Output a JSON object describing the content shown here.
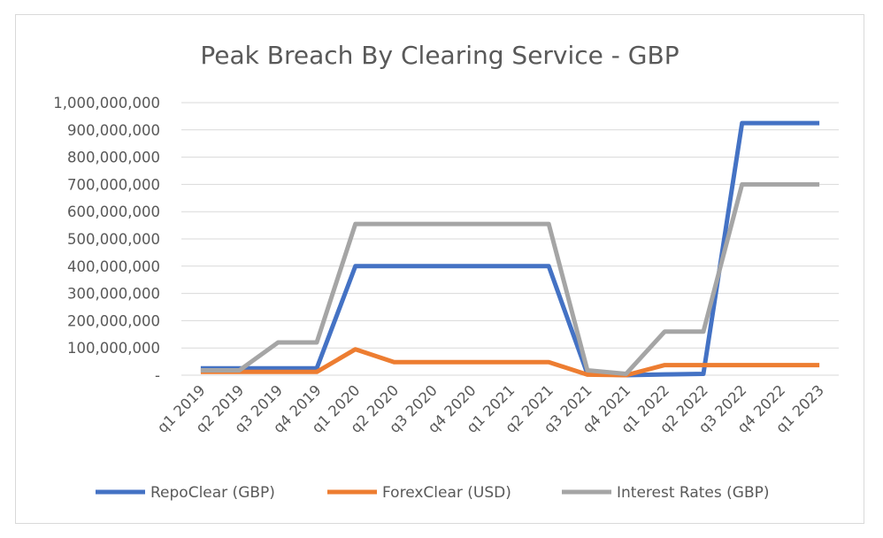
{
  "chart_data": {
    "type": "line",
    "title": "Peak Breach By Clearing Service - GBP",
    "xlabel": "",
    "ylabel": "",
    "categories": [
      "q1 2019",
      "q2 2019",
      "q3 2019",
      "q4 2019",
      "q1 2020",
      "q2 2020",
      "q3 2020",
      "q4 2020",
      "q1 2021",
      "q2 2021",
      "q3 2021",
      "q4 2021",
      "q1 2022",
      "q2 2022",
      "q3 2022",
      "q4 2022",
      "q1 2023"
    ],
    "ylim": [
      0,
      1000000000
    ],
    "yticks": [
      0,
      100000000,
      200000000,
      300000000,
      400000000,
      500000000,
      600000000,
      700000000,
      800000000,
      900000000,
      1000000000
    ],
    "ytick_labels": [
      "-",
      "100,000,000",
      "200,000,000",
      "300,000,000",
      "400,000,000",
      "500,000,000",
      "600,000,000",
      "700,000,000",
      "800,000,000",
      "900,000,000",
      "1,000,000,000"
    ],
    "grid": true,
    "legend_position": "bottom",
    "series": [
      {
        "name": "RepoClear (GBP)",
        "color": "#4472c4",
        "values": [
          25000000,
          25000000,
          25000000,
          25000000,
          400000000,
          400000000,
          400000000,
          400000000,
          400000000,
          400000000,
          5000000,
          0,
          3000000,
          5000000,
          925000000,
          925000000,
          925000000
        ]
      },
      {
        "name": "ForexClear (USD)",
        "color": "#ed7d31",
        "values": [
          12000000,
          12000000,
          12000000,
          12000000,
          95000000,
          48000000,
          48000000,
          48000000,
          48000000,
          48000000,
          2000000,
          0,
          37000000,
          37000000,
          37000000,
          37000000,
          37000000
        ]
      },
      {
        "name": "Interest Rates (GBP)",
        "color": "#a5a5a5",
        "values": [
          18000000,
          18000000,
          120000000,
          120000000,
          555000000,
          555000000,
          555000000,
          555000000,
          555000000,
          555000000,
          18000000,
          5000000,
          160000000,
          160000000,
          700000000,
          700000000,
          700000000
        ]
      }
    ]
  }
}
